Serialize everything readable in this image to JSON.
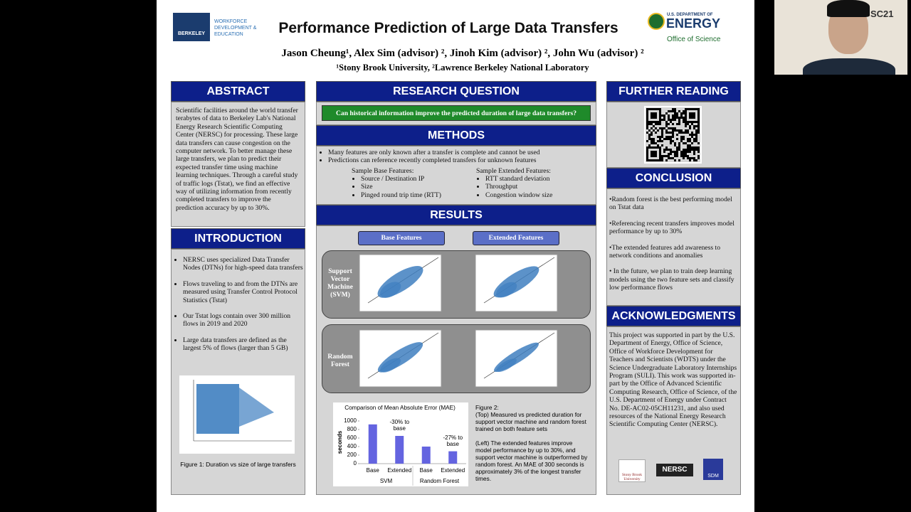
{
  "poster": {
    "logos": {
      "left": "BERKELEY LAB",
      "left_sub": "WORKFORCE DEVELOPMENT & EDUCATION",
      "right_top": "U.S. DEPARTMENT OF",
      "right_main": "ENERGY",
      "right_sub": "Office of Science"
    },
    "title": "Performance Prediction of Large Data Transfers",
    "authors": "Jason Cheung¹, Alex Sim (advisor) ², Jinoh Kim (advisor) ², John Wu (advisor) ²",
    "affiliations": "¹Stony Brook University, ²Lawrence Berkeley National Laboratory",
    "abstract": {
      "heading": "ABSTRACT",
      "text": "Scientific facilities around the world transfer terabytes of data to Berkeley Lab's National Energy Research Scientific Computing Center (NERSC) for processing. These large data transfers can cause congestion on the computer network. To better manage these large transfers, we plan to predict their expected transfer time using machine learning techniques. Through a careful study of traffic logs (Tstat), we find an effective way of utilizing information from recently completed transfers to improve the prediction accuracy by up to 30%."
    },
    "introduction": {
      "heading": "INTRODUCTION",
      "items": [
        "NERSC uses specialized Data Transfer Nodes (DTNs) for high-speed data transfers",
        "Flows traveling to and from the DTNs are measured using Transfer Control Protocol Statistics (Tstat)",
        "Our Tstat logs contain over 300 million flows in 2019 and 2020",
        "Large data transfers are defined as the largest 5% of flows (larger than 5 GB)"
      ],
      "figure_caption": "Figure 1: Duration vs size of large transfers"
    },
    "research_question": {
      "heading": "RESEARCH QUESTION",
      "question": "Can historical information improve the predicted duration of large data transfers?"
    },
    "methods": {
      "heading": "METHODS",
      "bullets": [
        "Many features are only known after a transfer is complete and cannot be used",
        "Predictions can reference recently completed transfers for unknown features"
      ],
      "base": {
        "title": "Sample Base Features:",
        "items": [
          "Source / Destination IP",
          "Size",
          "Pinged round trip time (RTT)"
        ]
      },
      "extended": {
        "title": "Sample Extended Features:",
        "items": [
          "RTT standard deviation",
          "Throughput",
          "Congestion window size"
        ]
      }
    },
    "results": {
      "heading": "RESULTS",
      "column_labels": [
        "Base Features",
        "Extended Features"
      ],
      "row_labels": [
        "Support Vector Machine (SVM)",
        "Random Forest"
      ],
      "figure2": {
        "title": "Figure 2:",
        "paragraphs": [
          "(Top) Measured vs predicted duration for support vector machine and random forest trained on both feature sets",
          "(Left) The extended features improve model performance by up to 30%, and support vector machine is outperformed by random forest. An MAE of 300 seconds is approximately 3% of the longest transfer times."
        ]
      }
    },
    "further_reading": {
      "heading": "FURTHER READING"
    },
    "conclusion": {
      "heading": "CONCLUSION",
      "items": [
        "•Random forest is the best performing model on Tstat data",
        "•Referencing recent transfers improves model performance by up to 30%",
        "•The extended features add awareness to network conditions and anomalies",
        "• In the future, we plan to train deep learning models using the two feature sets and classify low performance flows"
      ]
    },
    "acknowledgments": {
      "heading": "ACKNOWLEDGMENTS",
      "text": "This project was supported in part by the U.S. Department of Energy, Office of Science, Office of Workforce Development for Teachers and Scientists (WDTS) under the Science Undergraduate Laboratory Internships Program (SULI). This work was supported in-part by the Office of Advanced Scientific Computing Research, Office of Science, of the U.S. Department of Energy under Contract No. DE-AC02-05CH11231, and also used resources of the National Energy Research Scientific Computing Center (NERSC)."
    },
    "sponsor_logos": [
      "Stony Brook University",
      "NERSC",
      "SDM"
    ]
  },
  "webcam": {
    "badge": "SC21"
  },
  "chart_data": {
    "type": "bar",
    "title": "Comparison of Mean Absolute Error (MAE)",
    "ylabel": "seconds",
    "categories": [
      "Base",
      "Extended",
      "Base",
      "Extended"
    ],
    "groups": [
      "SVM",
      "Random Forest"
    ],
    "values": [
      920,
      650,
      400,
      290
    ],
    "annotations": [
      "-30% to base",
      "-27% to base"
    ],
    "color": "#6464e0",
    "ylim": [
      0,
      1000
    ],
    "yticks": [
      0,
      200,
      400,
      600,
      800,
      1000
    ]
  }
}
